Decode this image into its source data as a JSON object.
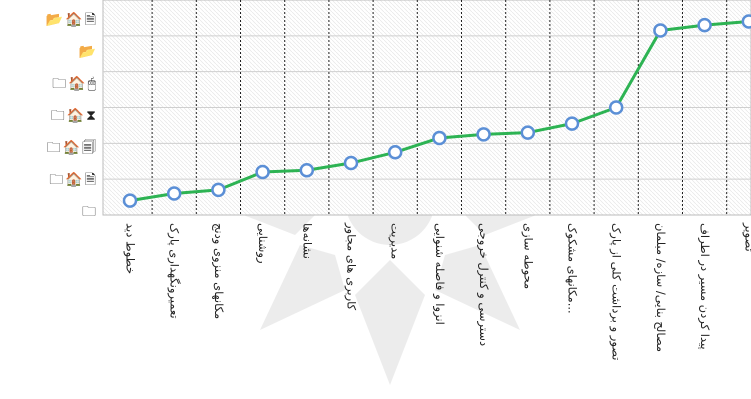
{
  "icon_rows": [
    {
      "icons": [
        "📂",
        "🏠",
        "🗎"
      ],
      "icon_names": [
        "folder-open-icon",
        "house-icon",
        "document-icon"
      ]
    },
    {
      "icons": [
        "📂"
      ],
      "icon_names": [
        "folder-open-icon"
      ]
    },
    {
      "icons": [
        "🗀",
        "🏠",
        "🖱"
      ],
      "icon_names": [
        "folder-icon",
        "house-icon",
        "mouse-icon"
      ]
    },
    {
      "icons": [
        "🗀",
        "🏠",
        "⧗"
      ],
      "icon_names": [
        "folder-icon",
        "house-icon",
        "hourglass-icon"
      ]
    },
    {
      "icons": [
        "🗀",
        "🏠",
        "🗐"
      ],
      "icon_names": [
        "folder-icon",
        "house-icon",
        "documents-icon"
      ]
    },
    {
      "icons": [
        "🗀",
        "🏠",
        "🗎"
      ],
      "icon_names": [
        "folder-icon",
        "house-icon",
        "document-icon"
      ]
    },
    {
      "icons": [
        "🗀"
      ],
      "icon_names": [
        "folder-icon"
      ]
    }
  ],
  "chart_data": {
    "type": "line",
    "categories": [
      "خطوط دید",
      "تعمیرونگهداری پارک",
      "مکانهای منزوی ودنج",
      "روشنایی",
      "نشانه‌ها",
      "کاربری های مجاور",
      "مدیریت",
      "انزوا و فاصله شنوایی",
      "دسترسی و کنترل خروجی",
      "محوطه سازی",
      "مکانهای مشکوک...",
      "تصور و برداشت کلی از پارک",
      "مصالح بنایی/ سازه/ مبلمان",
      "پیدا کردن مسیر در اطراف",
      "تصویر"
    ],
    "values": [
      0.8,
      1.2,
      1.4,
      2.4,
      2.5,
      2.9,
      3.5,
      4.3,
      4.5,
      4.6,
      5.1,
      6.0,
      10.3,
      10.6,
      10.8
    ],
    "ylim": [
      0,
      12
    ],
    "grid": true,
    "colors": {
      "line": "#2db353",
      "marker_fill": "#ffffff",
      "marker_stroke": "#5b8fd6",
      "grid": "#cfcfcf",
      "category_divider": "#222222",
      "watermark": "#dcdcdc"
    }
  }
}
